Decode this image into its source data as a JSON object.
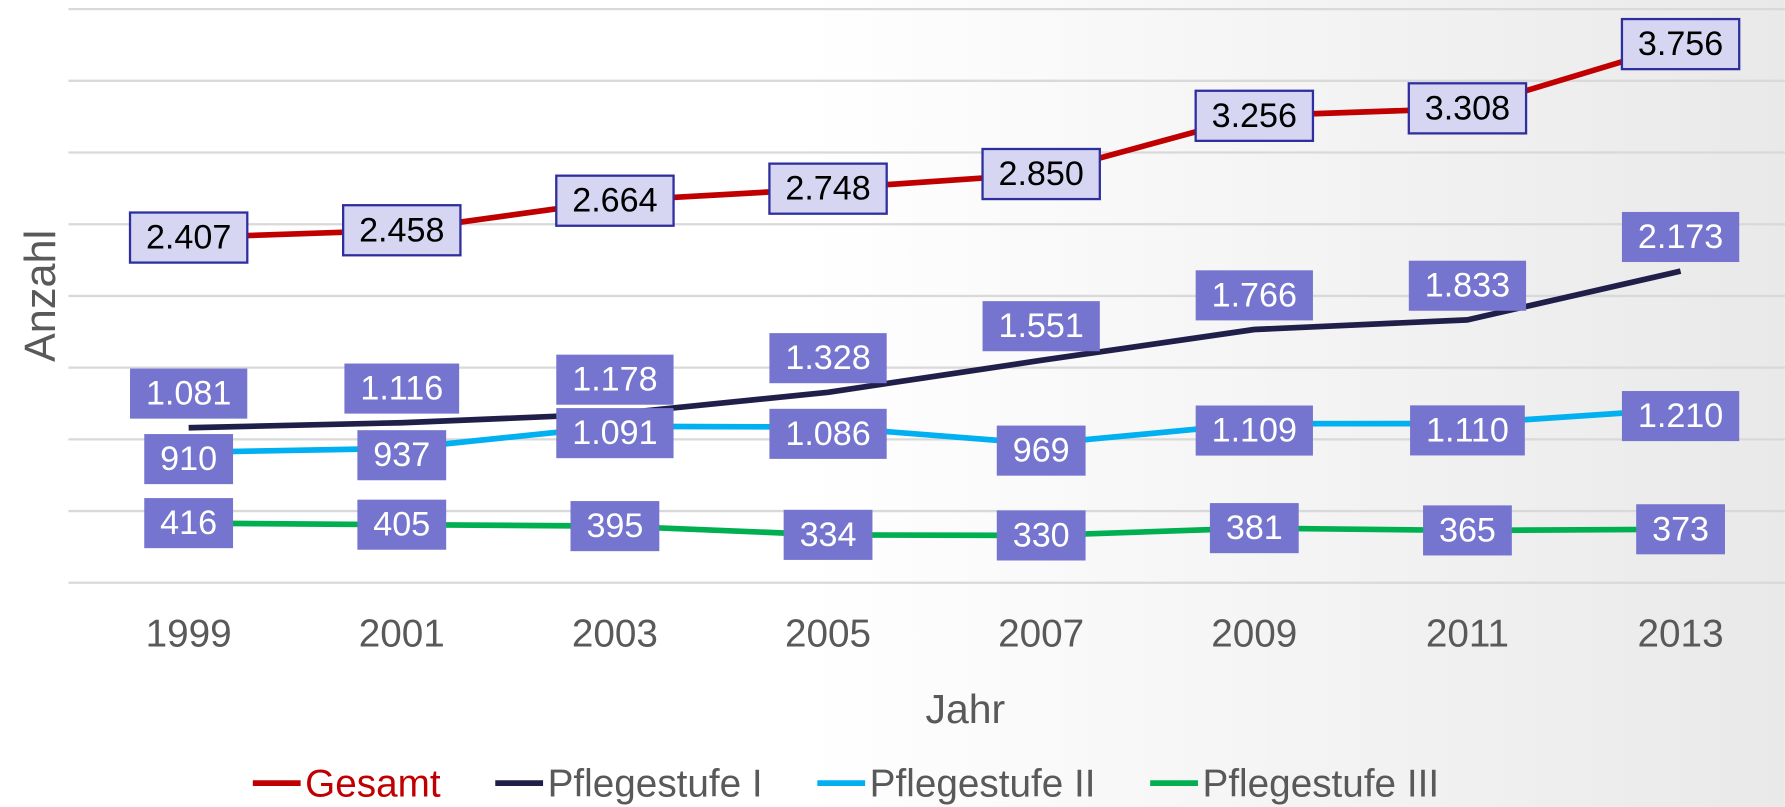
{
  "chart_data": {
    "type": "line",
    "x_label": "Jahr",
    "y_label": "Anzahl",
    "categories": [
      "1999",
      "2001",
      "2003",
      "2005",
      "2007",
      "2009",
      "2011",
      "2013"
    ],
    "ylim": [
      0,
      4000
    ],
    "yticks": [
      0,
      500,
      1000,
      1500,
      2000,
      2500,
      3000,
      3500,
      4000
    ],
    "grid": true,
    "legend": "bottom",
    "series": [
      {
        "name": "Gesamt",
        "color": "#c00000",
        "values": [
          2407,
          2458,
          2664,
          2748,
          2850,
          3256,
          3308,
          3756
        ],
        "value_labels": [
          "2.407",
          "2.458",
          "2.664",
          "2.748",
          "2.850",
          "3.256",
          "3.308",
          "3.756"
        ]
      },
      {
        "name": "Pflegestufe I",
        "color": "#1f1f4a",
        "values": [
          1081,
          1116,
          1178,
          1328,
          1551,
          1766,
          1833,
          2173
        ],
        "value_labels": [
          "1.081",
          "1.116",
          "1.178",
          "1.328",
          "1.551",
          "1.766",
          "1.833",
          "2.173"
        ]
      },
      {
        "name": "Pflegestufe II",
        "color": "#00b0f0",
        "values": [
          910,
          937,
          1091,
          1086,
          969,
          1109,
          1110,
          1210
        ],
        "value_labels": [
          "910",
          "937",
          "1.091",
          "1.086",
          "969",
          "1.109",
          "1.110",
          "1.210"
        ]
      },
      {
        "name": "Pflegestufe III",
        "color": "#00b050",
        "values": [
          416,
          405,
          395,
          334,
          330,
          381,
          365,
          373
        ]
      }
    ]
  }
}
